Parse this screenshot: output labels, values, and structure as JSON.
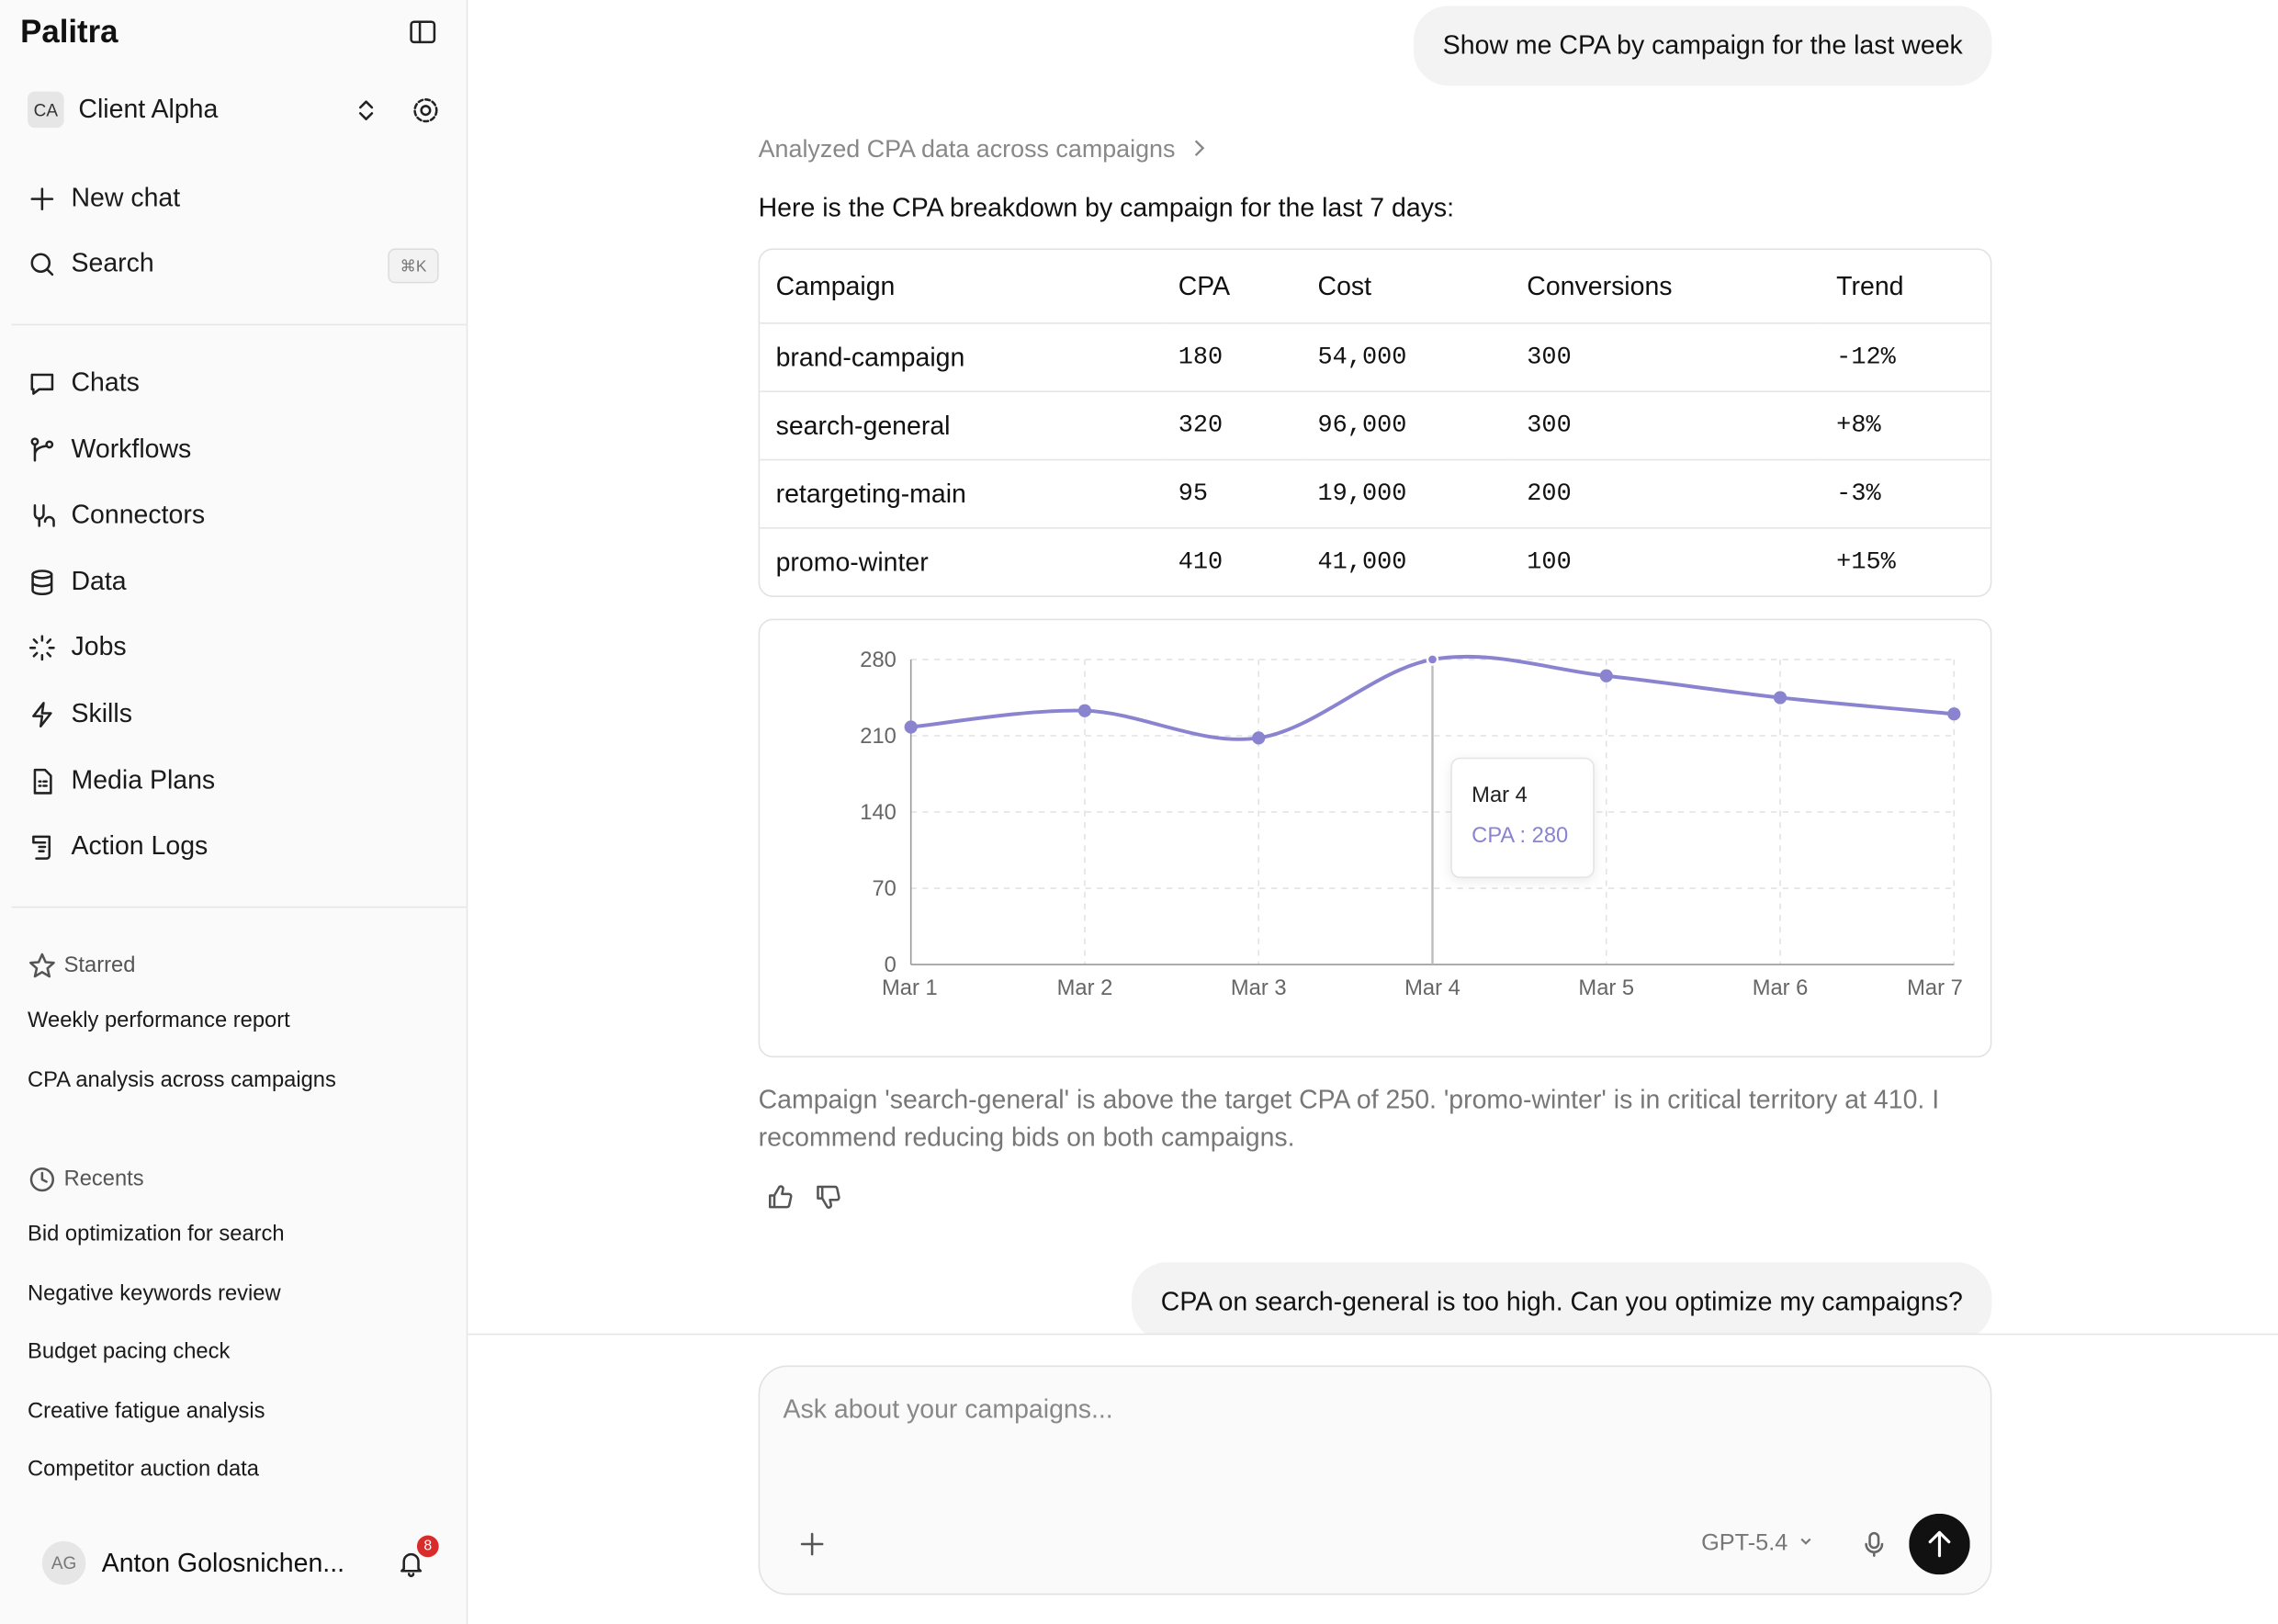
{
  "sidebar": {
    "brand": "Palitra",
    "workspace": {
      "initials": "CA",
      "name": "Client Alpha"
    },
    "actions": [
      {
        "label": "New chat"
      },
      {
        "label": "Search",
        "shortcut": "⌘K"
      }
    ],
    "nav": [
      "Chats",
      "Workflows",
      "Connectors",
      "Data",
      "Jobs",
      "Skills",
      "Media Plans",
      "Action Logs"
    ],
    "starred": {
      "title": "Starred",
      "items": [
        "Weekly performance report",
        "CPA analysis across campaigns"
      ]
    },
    "recents": {
      "title": "Recents",
      "items": [
        "Bid optimization for search",
        "Negative keywords review",
        "Budget pacing check",
        "Creative fatigue analysis",
        "Competitor auction data"
      ]
    },
    "user": {
      "initials": "AG",
      "name": "Anton Golosnichen...",
      "notifications": 8
    }
  },
  "conversation": {
    "user_message_1": "Show me CPA by campaign for the last week",
    "reasoning": "Analyzed CPA data across campaigns",
    "intro": "Here is the CPA breakdown by campaign for the last 7 days:",
    "table": {
      "columns": [
        "Campaign",
        "CPA",
        "Cost",
        "Conversions",
        "Trend"
      ],
      "rows": [
        [
          "brand-campaign",
          "180",
          "54,000",
          "300",
          "-12%"
        ],
        [
          "search-general",
          "320",
          "96,000",
          "300",
          "+8%"
        ],
        [
          "retargeting-main",
          "95",
          "19,000",
          "200",
          "-3%"
        ],
        [
          "promo-winter",
          "410",
          "41,000",
          "100",
          "+15%"
        ]
      ]
    },
    "summary": "Campaign 'search-general' is above the target CPA of 250. 'promo-winter' is in critical territory at 410. I recommend reducing bids on both campaigns.",
    "user_message_2": "CPA on search-general is too high. Can you optimize my campaigns?"
  },
  "chart_data": {
    "type": "line",
    "categories": [
      "Mar 1",
      "Mar 2",
      "Mar 3",
      "Mar 4",
      "Mar 5",
      "Mar 6",
      "Mar 7"
    ],
    "series": [
      {
        "name": "CPA",
        "color": "#8a84d0",
        "values": [
          218,
          233,
          208,
          280,
          265,
          245,
          230
        ]
      }
    ],
    "ylim": [
      0,
      280
    ],
    "yticks": [
      0,
      70,
      140,
      210,
      280
    ],
    "grid": true,
    "tooltip": {
      "title": "Mar 4",
      "text": "CPA : 280"
    }
  },
  "composer": {
    "placeholder": "Ask about your campaigns...",
    "model": "GPT-5.4"
  }
}
